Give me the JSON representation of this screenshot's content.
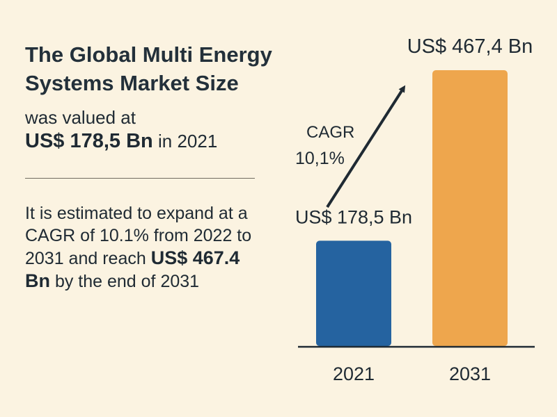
{
  "headline": {
    "title_line1": "The Global Multi Energy",
    "title_line2": "Systems Market Size",
    "valued_text": "was valued at",
    "valued_amount": "US$ 178,5 Bn",
    "valued_year": " in 2021",
    "expand_text": "It is estimated to expand at a CAGR of 10.1% from 2022 to 2031 and reach",
    "expand_amount": "US$ 467.4 Bn",
    "expand_tail": " by the end of 2031"
  },
  "chart_data": {
    "type": "bar",
    "categories": [
      "2021",
      "2031"
    ],
    "values": [
      178.5,
      467.4
    ],
    "data_labels": [
      "US$ 178,5 Bn",
      "US$ 467,4 Bn"
    ],
    "colors": [
      "#2563a0",
      "#eea64d"
    ],
    "annotation": {
      "line1": "CAGR",
      "line2": "10,1%"
    },
    "title": "",
    "xlabel": "",
    "ylabel": "",
    "ylim": [
      0,
      467.4
    ],
    "grid": false,
    "legend": "none"
  }
}
